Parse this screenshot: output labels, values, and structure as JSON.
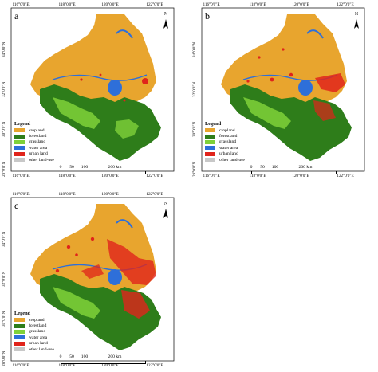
{
  "panels": [
    {
      "letter": "a"
    },
    {
      "letter": "b"
    },
    {
      "letter": "c"
    }
  ],
  "lon_labels": [
    "116°0'0\"E",
    "118°0'0\"E",
    "120°0'0\"E",
    "122°0'0\"E"
  ],
  "lat_labels": [
    "34°0'0\"N",
    "32°0'0\"N",
    "30°0'0\"N",
    "28°0'0\"N"
  ],
  "north_label": "N",
  "legend": {
    "title": "Legend",
    "items": [
      {
        "label": "cropland",
        "color": "#E8A52E"
      },
      {
        "label": "forestland",
        "color": "#2E7D1A"
      },
      {
        "label": "grassland",
        "color": "#7FD13A"
      },
      {
        "label": "water area",
        "color": "#2E6FD9"
      },
      {
        "label": "urban land",
        "color": "#E0241B"
      },
      {
        "label": "other land-use",
        "color": "#C8C8C8"
      }
    ]
  },
  "scale": {
    "labels": [
      "0",
      "50",
      "100",
      "200 km"
    ]
  }
}
